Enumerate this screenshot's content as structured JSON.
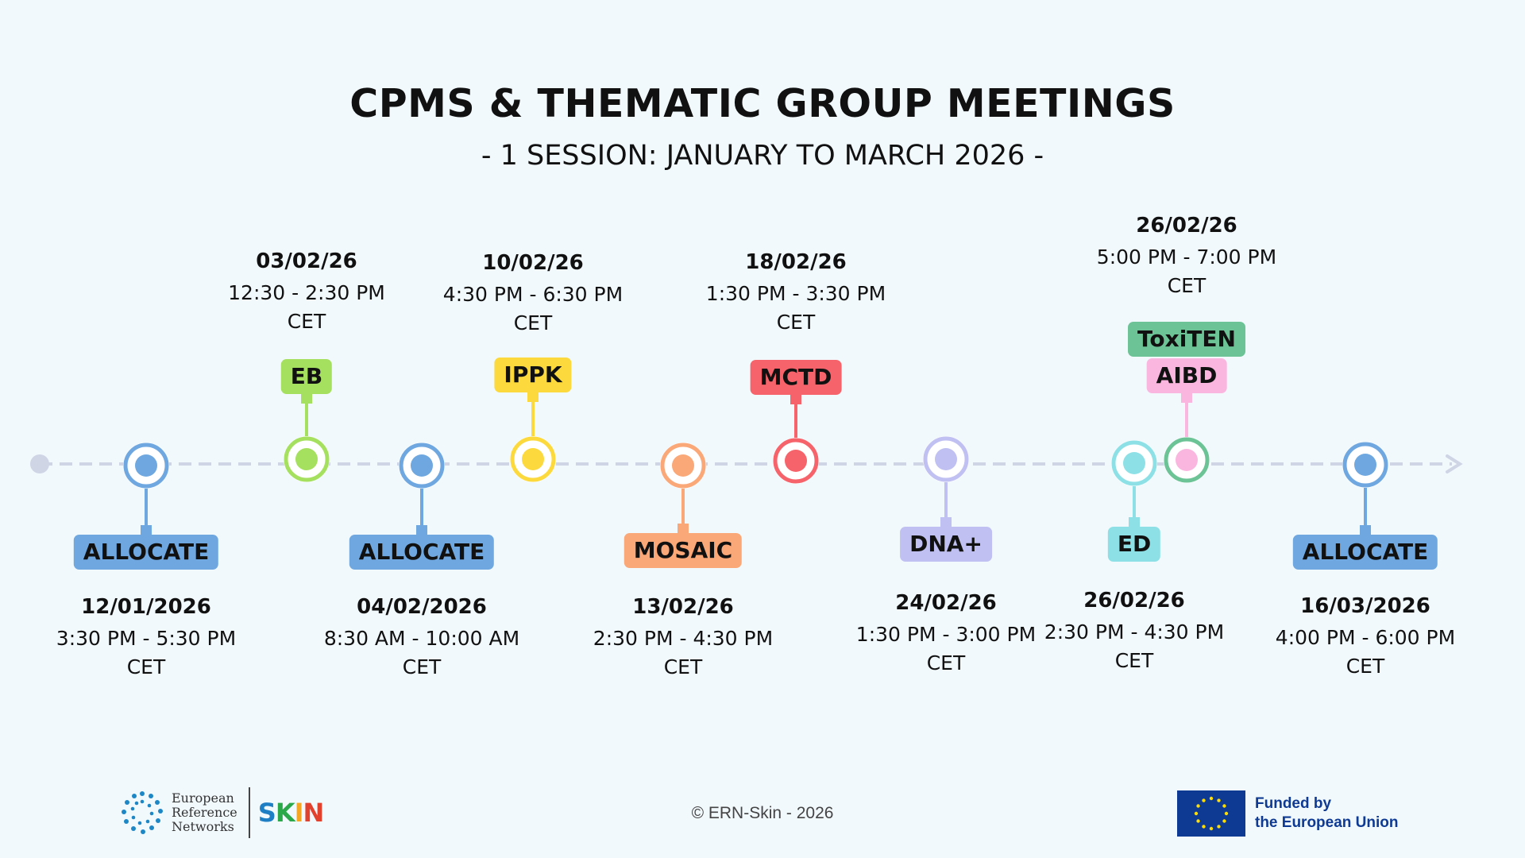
{
  "header": {
    "title": "CPMS & THEMATIC GROUP MEETINGS",
    "subtitle": "- 1 SESSION: JANUARY TO MARCH 2026 -"
  },
  "events": [
    {
      "id": "allocate-1",
      "label": "ALLOCATE",
      "color": "#6fa8e0",
      "dot": "#6fa8e0",
      "side": "below",
      "date": "12/01/2026",
      "time": "3:30 PM - 5:30 PM",
      "zone": "CET"
    },
    {
      "id": "eb",
      "label": "EB",
      "color": "#a6e05f",
      "dot": "#a6e05f",
      "side": "above",
      "date": "03/02/26",
      "time": "12:30 - 2:30 PM",
      "zone": "CET"
    },
    {
      "id": "allocate-2",
      "label": "ALLOCATE",
      "color": "#6fa8e0",
      "dot": "#6fa8e0",
      "side": "below",
      "date": "04/02/2026",
      "time": "8:30 AM - 10:00 AM",
      "zone": "CET"
    },
    {
      "id": "ippk",
      "label": "IPPK",
      "color": "#fcd93c",
      "dot": "#fcd93c",
      "side": "above",
      "date": "10/02/26",
      "time": "4:30 PM - 6:30 PM",
      "zone": "CET"
    },
    {
      "id": "mosaic",
      "label": "MOSAIC",
      "color": "#fba878",
      "dot": "#fba878",
      "side": "below",
      "date": "13/02/26",
      "time": "2:30 PM - 4:30 PM",
      "zone": "CET"
    },
    {
      "id": "mctd",
      "label": "MCTD",
      "color": "#f6636a",
      "dot": "#f6636a",
      "side": "above",
      "date": "18/02/26",
      "time": "1:30 PM - 3:30 PM",
      "zone": "CET"
    },
    {
      "id": "dna",
      "label": "DNA+",
      "color": "#c0c0f2",
      "dot": "#c0c0f2",
      "side": "below",
      "date": "24/02/26",
      "time": "1:30 PM - 3:00 PM",
      "zone": "CET"
    },
    {
      "id": "ed",
      "label": "ED",
      "color": "#8de1e6",
      "dot": "#8de1e6",
      "side": "below",
      "date": "26/02/26",
      "time": "2:30 PM - 4:30 PM",
      "zone": "CET"
    },
    {
      "id": "aibd-toxiten",
      "label": "AIBD",
      "label2": "ToxiTEN",
      "color": "#fbb6df",
      "color2": "#6cc395",
      "dot": "#fbb6df",
      "side": "above",
      "date": "26/02/26",
      "time": "5:00 PM - 7:00 PM",
      "zone": "CET"
    },
    {
      "id": "allocate-3",
      "label": "ALLOCATE",
      "color": "#6fa8e0",
      "dot": "#6fa8e0",
      "side": "below",
      "date": "16/03/2026",
      "time": "4:00 PM - 6:00 PM",
      "zone": "CET"
    }
  ],
  "footer": {
    "ern_line1": "European",
    "ern_line2": "Reference",
    "ern_line3": "Networks",
    "skin_logo": "SKIN",
    "copyright": "© ERN-Skin - 2026",
    "funded_line1": "Funded by",
    "funded_line2": "the European Union"
  }
}
